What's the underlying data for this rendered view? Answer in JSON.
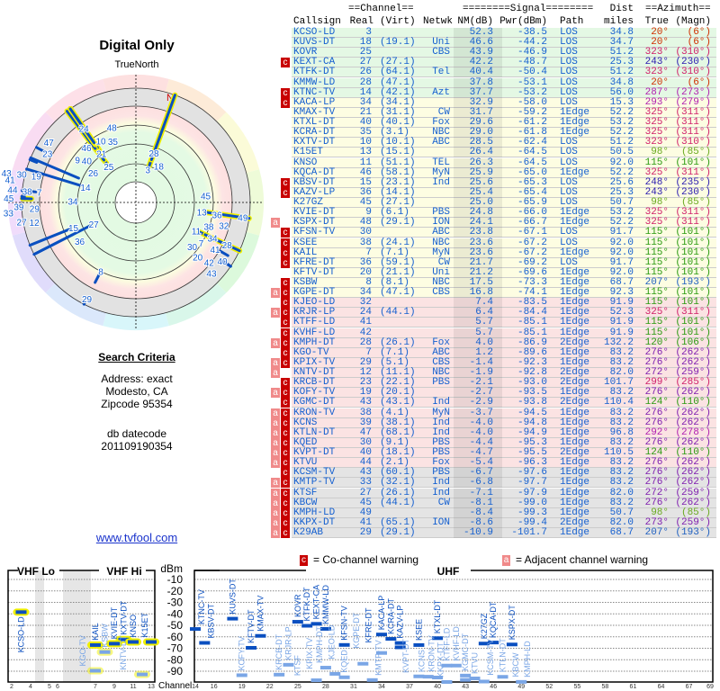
{
  "left": {
    "title": "Digital Only",
    "north_label": "TrueNorth",
    "north_marker": "N",
    "search_title": "Search Criteria",
    "address": "Address: exact",
    "city": "Modesto, CA",
    "zipcode": "Zipcode 95354",
    "db_label": "db datecode",
    "db_value": "201109190354",
    "link": "www.tvfool.com"
  },
  "table": {
    "group_channel": "==Channel==",
    "group_signal": "========Signal========",
    "group_dist": "Dist",
    "group_azimuth": "==Azimuth==",
    "cols": [
      "Callsign",
      "Real",
      "(Virt)",
      "Netwk",
      "NM(dB)",
      "Pwr(dBm)",
      "Path",
      "miles",
      "True",
      "(Magn)"
    ],
    "row_colors": {
      "green": "#e4f8e4",
      "yellow": "#fdfde2",
      "pink": "#fbe3e3",
      "gray": "#e4e4e4"
    },
    "rows": [
      {
        "f": "",
        "cs": "KCSO-LD",
        "real": "3",
        "virt": "",
        "net": "",
        "nm": "52.3",
        "pwr": "-38.5",
        "path": "LOS",
        "dist": "34.8",
        "az": "20°",
        "mag": "(6°)",
        "band": "green"
      },
      {
        "f": "",
        "cs": "KUVS-DT",
        "real": "18",
        "virt": "(19.1)",
        "net": "Uni",
        "nm": "46.6",
        "pwr": "-44.2",
        "path": "LOS",
        "dist": "34.7",
        "az": "20°",
        "mag": "(6°)",
        "band": "green"
      },
      {
        "f": "",
        "cs": "KOVR",
        "real": "25",
        "virt": "",
        "net": "CBS",
        "nm": "43.9",
        "pwr": "-46.9",
        "path": "LOS",
        "dist": "51.2",
        "az": "323°",
        "mag": "(310°)",
        "band": "green"
      },
      {
        "f": "c",
        "cs": "KEXT-CA",
        "real": "27",
        "virt": "(27.1)",
        "net": "",
        "nm": "42.2",
        "pwr": "-48.7",
        "path": "LOS",
        "dist": "25.3",
        "az": "243°",
        "mag": "(230°)",
        "band": "green"
      },
      {
        "f": "",
        "cs": "KTFK-DT",
        "real": "26",
        "virt": "(64.1)",
        "net": "Tel",
        "nm": "40.4",
        "pwr": "-50.4",
        "path": "LOS",
        "dist": "51.2",
        "az": "323°",
        "mag": "(310°)",
        "band": "green"
      },
      {
        "f": "",
        "cs": "KMMW-LD",
        "real": "28",
        "virt": "(47.1)",
        "net": "",
        "nm": "37.8",
        "pwr": "-53.1",
        "path": "LOS",
        "dist": "34.8",
        "az": "20°",
        "mag": "(6°)",
        "band": "green"
      },
      {
        "f": "c",
        "cs": "KTNC-TV",
        "real": "14",
        "virt": "(42.1)",
        "net": "Azt",
        "nm": "37.7",
        "pwr": "-53.2",
        "path": "LOS",
        "dist": "56.0",
        "az": "287°",
        "mag": "(273°)",
        "band": "green"
      },
      {
        "f": "c",
        "cs": "KACA-LP",
        "real": "34",
        "virt": "(34.1)",
        "net": "",
        "nm": "32.9",
        "pwr": "-58.0",
        "path": "LOS",
        "dist": "15.3",
        "az": "293°",
        "mag": "(279°)",
        "band": "yellow"
      },
      {
        "f": "",
        "cs": "KMAX-TV",
        "real": "21",
        "virt": "(31.1)",
        "net": "CW",
        "nm": "31.7",
        "pwr": "-59.2",
        "path": "1Edge",
        "dist": "52.2",
        "az": "325°",
        "mag": "(311°)",
        "band": "yellow"
      },
      {
        "f": "",
        "cs": "KTXL-DT",
        "real": "40",
        "virt": "(40.1)",
        "net": "Fox",
        "nm": "29.6",
        "pwr": "-61.2",
        "path": "1Edge",
        "dist": "53.2",
        "az": "325°",
        "mag": "(311°)",
        "band": "yellow"
      },
      {
        "f": "",
        "cs": "KCRA-DT",
        "real": "35",
        "virt": "(3.1)",
        "net": "NBC",
        "nm": "29.0",
        "pwr": "-61.8",
        "path": "1Edge",
        "dist": "52.2",
        "az": "325°",
        "mag": "(311°)",
        "band": "yellow"
      },
      {
        "f": "",
        "cs": "KXTV-DT",
        "real": "10",
        "virt": "(10.1)",
        "net": "ABC",
        "nm": "28.5",
        "pwr": "-62.4",
        "path": "LOS",
        "dist": "51.2",
        "az": "323°",
        "mag": "(310°)",
        "band": "yellow"
      },
      {
        "f": "",
        "cs": "K15ET",
        "real": "13",
        "virt": "(15.1)",
        "net": "",
        "nm": "26.4",
        "pwr": "-64.5",
        "path": "LOS",
        "dist": "50.5",
        "az": "98°",
        "mag": "(85°)",
        "band": "yellow"
      },
      {
        "f": "",
        "cs": "KNSO",
        "real": "11",
        "virt": "(51.1)",
        "net": "TEL",
        "nm": "26.3",
        "pwr": "-64.5",
        "path": "LOS",
        "dist": "92.0",
        "az": "115°",
        "mag": "(101°)",
        "band": "yellow"
      },
      {
        "f": "",
        "cs": "KQCA-DT",
        "real": "46",
        "virt": "(58.1)",
        "net": "MyN",
        "nm": "25.9",
        "pwr": "-65.0",
        "path": "1Edge",
        "dist": "52.2",
        "az": "325°",
        "mag": "(311°)",
        "band": "yellow"
      },
      {
        "f": "c",
        "cs": "KBSV-DT",
        "real": "15",
        "virt": "(23.1)",
        "net": "Ind",
        "nm": "25.6",
        "pwr": "-65.3",
        "path": "LOS",
        "dist": "25.6",
        "az": "248°",
        "mag": "(235°)",
        "band": "yellow"
      },
      {
        "f": "c",
        "cs": "KAZV-LP",
        "real": "36",
        "virt": "(14.1)",
        "net": "",
        "nm": "25.4",
        "pwr": "-65.4",
        "path": "LOS",
        "dist": "25.3",
        "az": "243°",
        "mag": "(230°)",
        "band": "yellow"
      },
      {
        "f": "",
        "cs": "K27GZ",
        "real": "45",
        "virt": "(27.1)",
        "net": "",
        "nm": "25.0",
        "pwr": "-65.9",
        "path": "LOS",
        "dist": "50.7",
        "az": "98°",
        "mag": "(85°)",
        "band": "yellow"
      },
      {
        "f": "",
        "cs": "KVIE-DT",
        "real": "9",
        "virt": "(6.1)",
        "net": "PBS",
        "nm": "24.8",
        "pwr": "-66.0",
        "path": "1Edge",
        "dist": "53.2",
        "az": "325°",
        "mag": "(311°)",
        "band": "yellow"
      },
      {
        "f": "a",
        "cs": "KSPX-DT",
        "real": "48",
        "virt": "(29.1)",
        "net": "ION",
        "nm": "24.1",
        "pwr": "-66.7",
        "path": "1Edge",
        "dist": "52.2",
        "az": "325°",
        "mag": "(311°)",
        "band": "yellow"
      },
      {
        "f": "c",
        "cs": "KFSN-TV",
        "real": "30",
        "virt": "",
        "net": "ABC",
        "nm": "23.8",
        "pwr": "-67.1",
        "path": "LOS",
        "dist": "91.7",
        "az": "115°",
        "mag": "(101°)",
        "band": "yellow"
      },
      {
        "f": "c",
        "cs": "KSEE",
        "real": "38",
        "virt": "(24.1)",
        "net": "NBC",
        "nm": "23.6",
        "pwr": "-67.2",
        "path": "LOS",
        "dist": "92.0",
        "az": "115°",
        "mag": "(101°)",
        "band": "yellow"
      },
      {
        "f": "c",
        "cs": "KAIL",
        "real": "7",
        "virt": "(7.1)",
        "net": "MyN",
        "nm": "23.6",
        "pwr": "-67.2",
        "path": "1Edge",
        "dist": "92.0",
        "az": "115°",
        "mag": "(101°)",
        "band": "yellow"
      },
      {
        "f": "c",
        "cs": "KFRE-DT",
        "real": "36",
        "virt": "(59.1)",
        "net": "CW",
        "nm": "21.7",
        "pwr": "-69.2",
        "path": "LOS",
        "dist": "91.7",
        "az": "115°",
        "mag": "(101°)",
        "band": "yellow"
      },
      {
        "f": "",
        "cs": "KFTV-DT",
        "real": "20",
        "virt": "(21.1)",
        "net": "Uni",
        "nm": "21.2",
        "pwr": "-69.6",
        "path": "1Edge",
        "dist": "92.0",
        "az": "115°",
        "mag": "(101°)",
        "band": "yellow"
      },
      {
        "f": "c",
        "cs": "KSBW",
        "real": "8",
        "virt": "(8.1)",
        "net": "NBC",
        "nm": "17.5",
        "pwr": "-73.3",
        "path": "1Edge",
        "dist": "68.7",
        "az": "207°",
        "mag": "(193°)",
        "band": "yellow"
      },
      {
        "f": "ac",
        "cs": "KGPE-DT",
        "real": "34",
        "virt": "(47.1)",
        "net": "CBS",
        "nm": "16.8",
        "pwr": "-74.1",
        "path": "1Edge",
        "dist": "92.3",
        "az": "115°",
        "mag": "(101°)",
        "band": "yellow"
      },
      {
        "f": "c",
        "cs": "KJEO-LD",
        "real": "32",
        "virt": "",
        "net": "",
        "nm": "7.4",
        "pwr": "-83.5",
        "path": "1Edge",
        "dist": "91.9",
        "az": "115°",
        "mag": "(101°)",
        "band": "pink"
      },
      {
        "f": "ac",
        "cs": "KRJR-LP",
        "real": "24",
        "virt": "(44.1)",
        "net": "",
        "nm": "6.4",
        "pwr": "-84.4",
        "path": "1Edge",
        "dist": "52.3",
        "az": "325°",
        "mag": "(311°)",
        "band": "pink"
      },
      {
        "f": "c",
        "cs": "KTFF-LD",
        "real": "41",
        "virt": "",
        "net": "",
        "nm": "5.7",
        "pwr": "-85.1",
        "path": "1Edge",
        "dist": "91.9",
        "az": "115°",
        "mag": "(101°)",
        "band": "pink"
      },
      {
        "f": "c",
        "cs": "KVHF-LD",
        "real": "42",
        "virt": "",
        "net": "",
        "nm": "5.7",
        "pwr": "-85.1",
        "path": "1Edge",
        "dist": "91.9",
        "az": "115°",
        "mag": "(101°)",
        "band": "pink"
      },
      {
        "f": "ac",
        "cs": "KMPH-DT",
        "real": "28",
        "virt": "(26.1)",
        "net": "Fox",
        "nm": "4.0",
        "pwr": "-86.9",
        "path": "2Edge",
        "dist": "132.2",
        "az": "120°",
        "mag": "(106°)",
        "band": "pink"
      },
      {
        "f": "c",
        "cs": "KGO-TV",
        "real": "7",
        "virt": "(7.1)",
        "net": "ABC",
        "nm": "1.2",
        "pwr": "-89.6",
        "path": "1Edge",
        "dist": "83.2",
        "az": "276°",
        "mag": "(262°)",
        "band": "pink"
      },
      {
        "f": "ac",
        "cs": "KPIX-TV",
        "real": "29",
        "virt": "(5.1)",
        "net": "CBS",
        "nm": "-1.4",
        "pwr": "-92.3",
        "path": "1Edge",
        "dist": "83.2",
        "az": "276°",
        "mag": "(262°)",
        "band": "pink"
      },
      {
        "f": "a",
        "cs": "KNTV-DT",
        "real": "12",
        "virt": "(11.1)",
        "net": "NBC",
        "nm": "-1.9",
        "pwr": "-92.8",
        "path": "2Edge",
        "dist": "82.0",
        "az": "272°",
        "mag": "(259°)",
        "band": "pink"
      },
      {
        "f": "c",
        "cs": "KRCB-DT",
        "real": "23",
        "virt": "(22.1)",
        "net": "PBS",
        "nm": "-2.1",
        "pwr": "-93.0",
        "path": "2Edge",
        "dist": "101.7",
        "az": "299°",
        "mag": "(285°)",
        "band": "pink"
      },
      {
        "f": "ac",
        "cs": "KOFY-TV",
        "real": "19",
        "virt": "(20.1)",
        "net": "",
        "nm": "-2.7",
        "pwr": "-93.5",
        "path": "1Edge",
        "dist": "83.2",
        "az": "276°",
        "mag": "(262°)",
        "band": "pink"
      },
      {
        "f": "c",
        "cs": "KGMC-DT",
        "real": "43",
        "virt": "(43.1)",
        "net": "Ind",
        "nm": "-2.9",
        "pwr": "-93.8",
        "path": "2Edge",
        "dist": "110.4",
        "az": "124°",
        "mag": "(110°)",
        "band": "pink"
      },
      {
        "f": "ac",
        "cs": "KRON-TV",
        "real": "38",
        "virt": "(4.1)",
        "net": "MyN",
        "nm": "-3.7",
        "pwr": "-94.5",
        "path": "1Edge",
        "dist": "83.2",
        "az": "276°",
        "mag": "(262°)",
        "band": "pink"
      },
      {
        "f": "ac",
        "cs": "KCNS",
        "real": "39",
        "virt": "(38.1)",
        "net": "Ind",
        "nm": "-4.0",
        "pwr": "-94.8",
        "path": "1Edge",
        "dist": "83.2",
        "az": "276°",
        "mag": "(262°)",
        "band": "pink"
      },
      {
        "f": "ac",
        "cs": "KTLN-DT",
        "real": "47",
        "virt": "(68.1)",
        "net": "Ind",
        "nm": "-4.0",
        "pwr": "-94.9",
        "path": "1Edge",
        "dist": "96.8",
        "az": "292°",
        "mag": "(278°)",
        "band": "pink"
      },
      {
        "f": "ac",
        "cs": "KQED",
        "real": "30",
        "virt": "(9.1)",
        "net": "PBS",
        "nm": "-4.4",
        "pwr": "-95.3",
        "path": "1Edge",
        "dist": "83.2",
        "az": "276°",
        "mag": "(262°)",
        "band": "pink"
      },
      {
        "f": "ac",
        "cs": "KVPT-DT",
        "real": "40",
        "virt": "(18.1)",
        "net": "PBS",
        "nm": "-4.7",
        "pwr": "-95.5",
        "path": "2Edge",
        "dist": "110.5",
        "az": "124°",
        "mag": "(110°)",
        "band": "pink"
      },
      {
        "f": "ac",
        "cs": "KTVU",
        "real": "44",
        "virt": "(2.1)",
        "net": "Fox",
        "nm": "-5.4",
        "pwr": "-96.3",
        "path": "1Edge",
        "dist": "83.2",
        "az": "276°",
        "mag": "(262°)",
        "band": "pink"
      },
      {
        "f": "c",
        "cs": "KCSM-TV",
        "real": "43",
        "virt": "(60.1)",
        "net": "PBS",
        "nm": "-6.7",
        "pwr": "-97.6",
        "path": "1Edge",
        "dist": "83.2",
        "az": "276°",
        "mag": "(262°)",
        "band": "gray"
      },
      {
        "f": "ac",
        "cs": "KMTP-TV",
        "real": "33",
        "virt": "(32.1)",
        "net": "Ind",
        "nm": "-6.8",
        "pwr": "-97.7",
        "path": "1Edge",
        "dist": "83.2",
        "az": "276°",
        "mag": "(262°)",
        "band": "gray"
      },
      {
        "f": "ac",
        "cs": "KTSF",
        "real": "27",
        "virt": "(26.1)",
        "net": "Ind",
        "nm": "-7.1",
        "pwr": "-97.9",
        "path": "1Edge",
        "dist": "82.0",
        "az": "272°",
        "mag": "(259°)",
        "band": "gray"
      },
      {
        "f": "ac",
        "cs": "KBCW",
        "real": "45",
        "virt": "(44.1)",
        "net": "CW",
        "nm": "-8.1",
        "pwr": "-99.0",
        "path": "1Edge",
        "dist": "83.2",
        "az": "276°",
        "mag": "(262°)",
        "band": "gray"
      },
      {
        "f": "ac",
        "cs": "KMPH-LD",
        "real": "49",
        "virt": "",
        "net": "",
        "nm": "-8.4",
        "pwr": "-99.3",
        "path": "1Edge",
        "dist": "50.7",
        "az": "98°",
        "mag": "(85°)",
        "band": "gray"
      },
      {
        "f": "ac",
        "cs": "KKPX-DT",
        "real": "41",
        "virt": "(65.1)",
        "net": "ION",
        "nm": "-8.6",
        "pwr": "-99.4",
        "path": "2Edge",
        "dist": "82.0",
        "az": "273°",
        "mag": "(259°)",
        "band": "gray"
      },
      {
        "f": "ac",
        "cs": "K29AB",
        "real": "29",
        "virt": "(29.1)",
        "net": "",
        "nm": "-10.9",
        "pwr": "-101.7",
        "path": "1Edge",
        "dist": "68.7",
        "az": "207°",
        "mag": "(193°)",
        "band": "gray"
      }
    ]
  },
  "legend": {
    "co_flag": "c",
    "co_text": "= Co-channel warning",
    "adj_flag": "a",
    "adj_text": "= Adjacent channel warning"
  },
  "spectrum": {
    "vhf_lo": "VHF Lo",
    "vhf_hi": "VHF Hi",
    "uhf": "UHF",
    "unit": "dBm",
    "channel_label": "Channel",
    "dbm_ticks": [
      "-10",
      "-20",
      "-30",
      "-40",
      "-50",
      "-60",
      "-70",
      "-80",
      "-90"
    ],
    "vhf_channel_ticks": [
      "2",
      "4",
      "5",
      "6",
      "7",
      "9",
      "11",
      "13"
    ],
    "uhf_channel_ticks": [
      "14",
      "16",
      "19",
      "22",
      "25",
      "28",
      "31",
      "34",
      "37",
      "40",
      "43",
      "46",
      "49",
      "52",
      "55",
      "58",
      "61",
      "64",
      "67",
      "69"
    ]
  },
  "colors": {
    "strong": "#0a4fc0",
    "weak": "#7aa6e6",
    "highlight": "#f0f000",
    "flag_c": "#c80000",
    "flag_a": "#f08a8a",
    "text": "#1560d0"
  }
}
